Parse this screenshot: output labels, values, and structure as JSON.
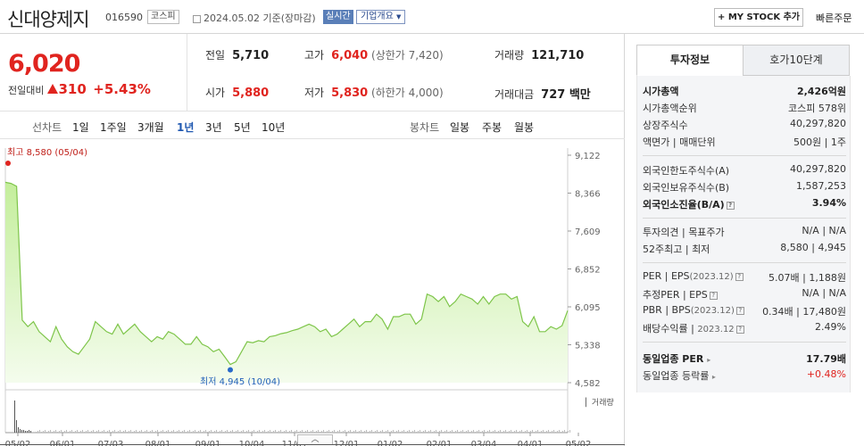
{
  "header": {
    "company": "신대양제지",
    "code": "016590",
    "market": "코스피",
    "date": "2024.05.02 기준(장마감)",
    "realtime": "실시간",
    "profile": "기업개요",
    "mystock": "+ MY STOCK 추가",
    "quick_order": "빠른주문"
  },
  "price": {
    "now": "6,020",
    "change_label": "전일대비",
    "change": "310",
    "change_pct": "+5.43%"
  },
  "quotes": {
    "prev_label": "전일",
    "prev": "5,710",
    "high_label": "고가",
    "high": "6,040",
    "high_sub": "(상한가 7,420)",
    "volume_label": "거래량",
    "volume": "121,710",
    "open_label": "시가",
    "open": "5,880",
    "low_label": "저가",
    "low": "5,830",
    "low_sub": "(하한가 4,000)",
    "amount_label": "거래대금",
    "amount": "727 백만"
  },
  "range": {
    "line_label": "선차트",
    "line_items": [
      "1일",
      "1주일",
      "3개월",
      "1년",
      "3년",
      "5년",
      "10년"
    ],
    "active": "1년",
    "candle_label": "봉차트",
    "candle_items": [
      "일봉",
      "주봉",
      "월봉"
    ]
  },
  "chart_data": {
    "type": "area",
    "y_ticks": [
      "9,122",
      "8,366",
      "7,609",
      "6,852",
      "6,095",
      "5,338",
      "4,582"
    ],
    "ylim": [
      4582,
      9122
    ],
    "x_ticks": [
      "05/02",
      "06/01",
      "07/03",
      "08/01",
      "09/01",
      "10/04",
      "11/01",
      "12/01",
      "01/02",
      "02/01",
      "03/04",
      "04/01",
      "05/02"
    ],
    "high_label": "최고 8,580 (05/04)",
    "low_label": "최저 4,945 (10/04)",
    "volume_label": "거래량",
    "values": [
      8580,
      8560,
      8500,
      5830,
      5700,
      5800,
      5600,
      5500,
      5400,
      5700,
      5450,
      5300,
      5200,
      5150,
      5300,
      5450,
      5800,
      5700,
      5600,
      5550,
      5750,
      5550,
      5650,
      5750,
      5600,
      5500,
      5400,
      5500,
      5450,
      5600,
      5550,
      5450,
      5350,
      5350,
      5500,
      5350,
      5300,
      5200,
      5250,
      5100,
      4945,
      5000,
      5200,
      5400,
      5380,
      5420,
      5400,
      5500,
      5520,
      5560,
      5580,
      5620,
      5650,
      5700,
      5750,
      5700,
      5600,
      5650,
      5500,
      5550,
      5650,
      5750,
      5850,
      5700,
      5800,
      5800,
      5950,
      5850,
      5650,
      5900,
      5900,
      5950,
      5950,
      5750,
      5850,
      6350,
      6300,
      6200,
      6300,
      6100,
      6200,
      6350,
      6300,
      6250,
      6150,
      6300,
      6150,
      6300,
      6350,
      6350,
      6250,
      6300,
      5800,
      5700,
      5900,
      5600,
      5600,
      5700,
      5650,
      5720,
      6020
    ]
  },
  "info": {
    "tab_active": "투자정보",
    "tab_other": "호가10단계",
    "mktcap_label": "시가총액",
    "mktcap": "2,426억원",
    "rank_label": "시가총액순위",
    "rank": "코스피 578위",
    "shares_label": "상장주식수",
    "shares": "40,297,820",
    "par_label": "액면가",
    "par_sep": "매매단위",
    "par": "500원",
    "unit": "1주",
    "foreign_limit_label": "외국인한도주식수(A)",
    "foreign_limit": "40,297,820",
    "foreign_hold_label": "외국인보유주식수(B)",
    "foreign_hold": "1,587,253",
    "foreign_ratio_label": "외국인소진율(B/A)",
    "foreign_ratio": "3.94%",
    "opinion_label": "투자의견",
    "opinion_sep": "목표주가",
    "opinion": "N/A",
    "target": "N/A",
    "wk52_label": "52주최고",
    "wk52_sep": "최저",
    "wk52_high": "8,580",
    "wk52_low": "4,945",
    "per_label": "PER",
    "eps_label": "EPS",
    "eps_year": "(2023.12)",
    "per": "5.07배",
    "eps": "1,188원",
    "eper_label": "추정PER",
    "eeps_label": "EPS",
    "eper": "N/A",
    "eeps": "N/A",
    "pbr_label": "PBR",
    "bps_label": "BPS",
    "bps_year": "(2023.12)",
    "pbr": "0.34배",
    "bps": "17,480원",
    "div_label": "배당수익률",
    "div_year": "2023.12",
    "div": "2.49%",
    "ind_per_label": "동일업종 PER",
    "ind_per": "17.79배",
    "ind_chg_label": "동일업종 등락률",
    "ind_chg": "+0.48%"
  }
}
